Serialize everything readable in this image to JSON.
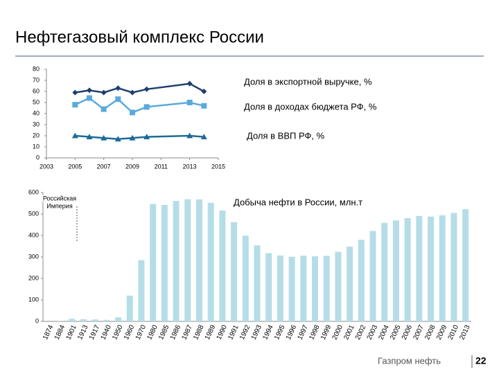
{
  "title": "Нефтегазовый комплекс России",
  "footer": {
    "company": "Газпром нефть",
    "page": "22"
  },
  "chart_data": [
    {
      "type": "line",
      "xlim": [
        2003,
        2015
      ],
      "xticks": [
        2003,
        2005,
        2007,
        2009,
        2011,
        2013,
        2015
      ],
      "ylim": [
        0,
        80
      ],
      "yticks": [
        0,
        10,
        20,
        30,
        40,
        50,
        60,
        70,
        80
      ],
      "x": [
        2005,
        2006,
        2007,
        2008,
        2009,
        2010,
        2013,
        2014
      ],
      "series": [
        {
          "name": "Доля в экспортной выручке, %",
          "color": "#1f3f6e",
          "marker": "diamond",
          "values": [
            59,
            61,
            59,
            63,
            59,
            62,
            67,
            60
          ]
        },
        {
          "name": "Доля в доходах бюджета РФ, %",
          "color": "#5aa9dc",
          "marker": "square",
          "values": [
            48,
            54,
            44,
            53,
            41,
            46,
            50,
            47
          ]
        },
        {
          "name": "Доля в ВВП РФ, %",
          "color": "#1d6a96",
          "marker": "triangle",
          "values": [
            20,
            19,
            18,
            17,
            18,
            19,
            20,
            19
          ]
        }
      ]
    },
    {
      "type": "bar",
      "title": "Добыча нефти в России, млн.т",
      "annotation": [
        "Российская",
        "Империя"
      ],
      "color": "#b5dde8",
      "ylim": [
        0,
        600
      ],
      "yticks": [
        0,
        100,
        200,
        300,
        400,
        500,
        600
      ],
      "categories": [
        "1874",
        "1884",
        "1901",
        "1913",
        "1917",
        "1940",
        "1950",
        "1960",
        "1970",
        "1980",
        "1985",
        "1986",
        "1987",
        "1988",
        "1989",
        "1990",
        "1991",
        "1992",
        "1993",
        "1994",
        "1995",
        "1996",
        "1997",
        "1998",
        "1999",
        "2000",
        "2001",
        "2002",
        "2003",
        "2004",
        "2005",
        "2006",
        "2007",
        "2008",
        "2009",
        "2010",
        "2013"
      ],
      "values": [
        0,
        1,
        12,
        10,
        9,
        7,
        19,
        120,
        285,
        547,
        542,
        561,
        569,
        568,
        552,
        516,
        462,
        399,
        354,
        318,
        307,
        301,
        306,
        303,
        305,
        324,
        348,
        380,
        421,
        459,
        470,
        481,
        491,
        488,
        494,
        505,
        523
      ]
    }
  ]
}
